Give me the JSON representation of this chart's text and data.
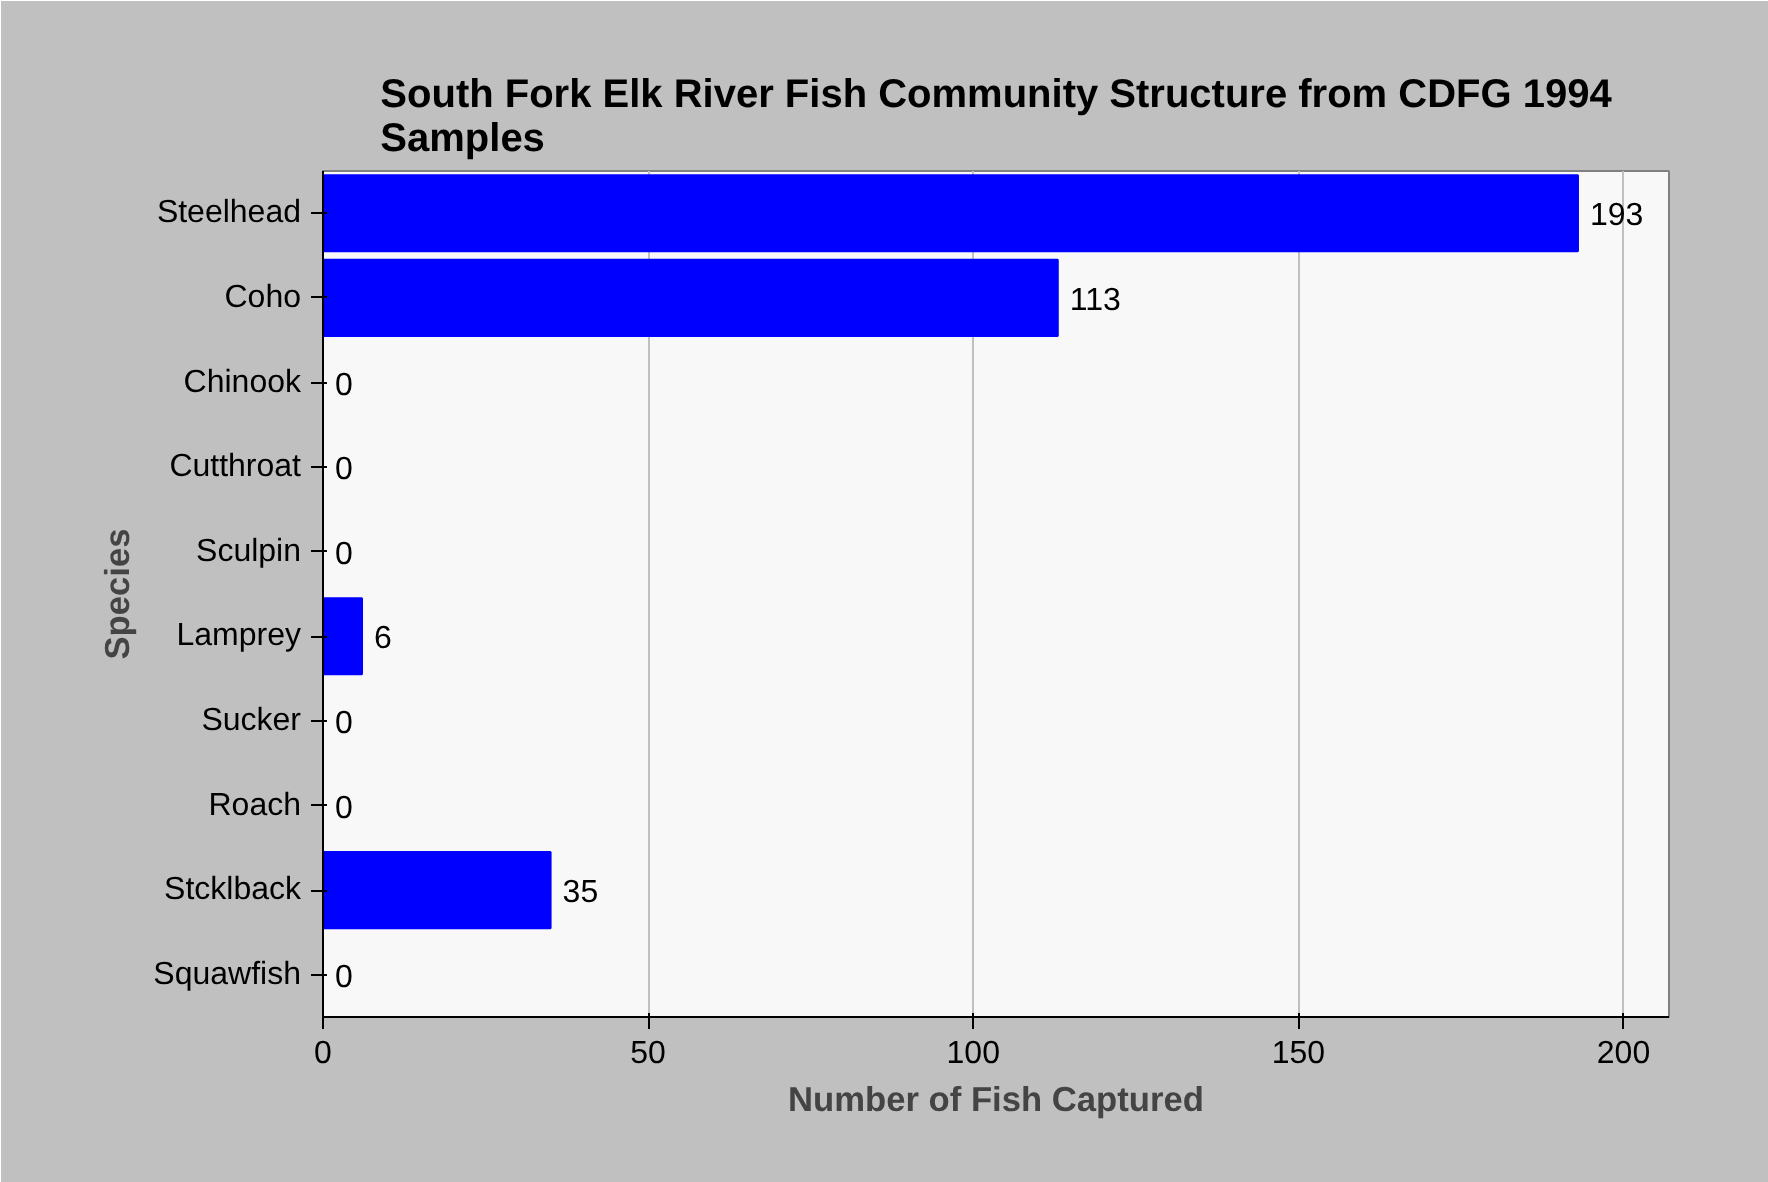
{
  "chart_data": {
    "type": "bar",
    "orientation": "horizontal",
    "title": "South Fork Elk River Fish Community Structure from CDFG 1994 Samples",
    "xlabel": "Number of Fish Captured",
    "ylabel": "Species",
    "categories": [
      "Steelhead",
      "Coho",
      "Chinook",
      "Cutthroat",
      "Sculpin",
      "Lamprey",
      "Sucker",
      "Roach",
      "Stcklback",
      "Squawfish"
    ],
    "values": [
      193,
      113,
      0,
      0,
      0,
      6,
      0,
      0,
      35,
      0
    ],
    "color": "#0000ff",
    "xlim": [
      0,
      207
    ],
    "xticks": [
      0,
      50,
      100,
      150,
      200
    ],
    "grid": "x",
    "data_labels": true
  }
}
